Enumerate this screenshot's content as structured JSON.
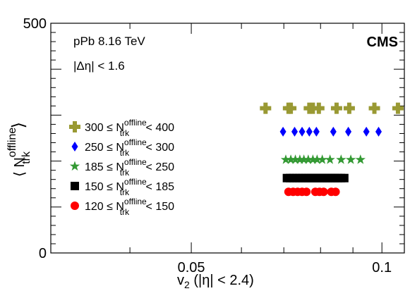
{
  "colors": {
    "series_300": "#999933",
    "series_250": "#0000ff",
    "series_185": "#339933",
    "series_150": "#000000",
    "series_120": "#ff0000"
  },
  "annotations": {
    "collision": "pPb 8.16 TeV",
    "eta_cut": "|Δη| < 1.6",
    "experiment": "CMS"
  },
  "chart_data": {
    "type": "scatter",
    "xlabel": "v₂ (|η| < 2.4)",
    "ylabel": "⟨ N_trk^offline ⟩",
    "xlim": [
      0.03,
      0.1085
    ],
    "ylim": [
      0,
      500
    ],
    "x_scale": "log",
    "xticks": [
      {
        "value": 0.05,
        "label": "0.05"
      },
      {
        "value": 0.1,
        "label": "0.1"
      }
    ],
    "yticks": [
      {
        "value": 0,
        "label": "0"
      },
      {
        "value": 500,
        "label": "500"
      }
    ],
    "legend_position": "left",
    "series": [
      {
        "name": "300 ≤ N_trk^offline < 400",
        "marker": "cross",
        "y": 315,
        "x": [
          0.0655,
          0.0712,
          0.0718,
          0.0768,
          0.0778,
          0.0795,
          0.0848,
          0.0888,
          0.0973,
          0.106
        ]
      },
      {
        "name": "250 ≤ N_trk^offline < 300",
        "marker": "diamond",
        "y": 264,
        "x": [
          0.0698,
          0.0728,
          0.0748,
          0.0768,
          0.0788,
          0.0838,
          0.0885,
          0.0945,
          0.0988
        ]
      },
      {
        "name": "185 ≤ N_trk^offline < 250",
        "marker": "star",
        "y": 203,
        "x": [
          0.0705,
          0.0718,
          0.073,
          0.0742,
          0.0753,
          0.0765,
          0.0778,
          0.079,
          0.0805,
          0.0828,
          0.0862,
          0.0893,
          0.0925
        ]
      },
      {
        "name": "150 ≤ N_trk^offline < 185",
        "marker": "square",
        "y": 163,
        "x": [
          0.0708,
          0.0716,
          0.0724,
          0.0732,
          0.074,
          0.0748,
          0.0756,
          0.0764,
          0.0772,
          0.078,
          0.0788,
          0.0796,
          0.0804,
          0.0812,
          0.082,
          0.0828,
          0.0836,
          0.0844,
          0.0852,
          0.0862,
          0.0872
        ]
      },
      {
        "name": "120 ≤ N_trk^offline < 150",
        "marker": "circle",
        "y": 133,
        "x": [
          0.0712,
          0.0724,
          0.0736,
          0.0748,
          0.076,
          0.0785,
          0.0797,
          0.0809,
          0.0832,
          0.0845
        ]
      }
    ]
  }
}
